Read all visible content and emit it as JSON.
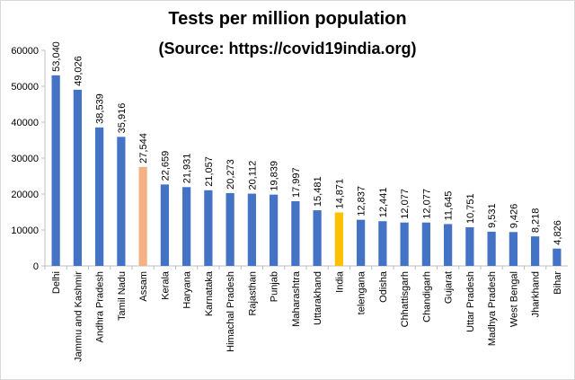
{
  "chart_data": {
    "type": "bar",
    "title": "Tests per million population",
    "subtitle": "(Source: https://covid19india.org)",
    "xlabel": "",
    "ylabel": "",
    "ylim": [
      0,
      60000
    ],
    "yticks": [
      0,
      10000,
      20000,
      30000,
      40000,
      50000,
      60000
    ],
    "ytick_labels": [
      "0",
      "10000",
      "20000",
      "30000",
      "40000",
      "50000",
      "60000"
    ],
    "grid": false,
    "legend": "none",
    "categories": [
      "Delhi",
      "Jammu and Kashmir",
      "Andhra Pradesh",
      "Tamil Nadu",
      "Assam",
      "Kerala",
      "Haryana",
      "Karnataka",
      "Himachal Pradesh",
      "Rajasthan",
      "Punjab",
      "Maharashtra",
      "Uttarakhand",
      "India",
      "telengana",
      "Odisha",
      "Chhattisgarh",
      "Chandigarh",
      "Gujarat",
      "Uttar Pradesh",
      "Madhya Pradesh",
      "West Bengal",
      "Jharkhand",
      "Bihar"
    ],
    "values": [
      53040,
      49026,
      38539,
      35916,
      27544,
      22659,
      21931,
      21057,
      20273,
      20112,
      19839,
      17997,
      15481,
      14871,
      12837,
      12441,
      12077,
      12077,
      11645,
      10751,
      9531,
      9426,
      8218,
      4826
    ],
    "data_labels": [
      "53,040",
      "49,026",
      "38,539",
      "35,916",
      "27,544",
      "22,659",
      "21,931",
      "21,057",
      "20,273",
      "20,112",
      "19,839",
      "17,997",
      "15,481",
      "14,871",
      "12,837",
      "12,441",
      "12,077",
      "12,077",
      "11,645",
      "10,751",
      "9,531",
      "9,426",
      "8,218",
      "4,826"
    ],
    "colors": {
      "default": "#4472c4",
      "Assam": "#f4b183",
      "India": "#ffc000"
    }
  }
}
